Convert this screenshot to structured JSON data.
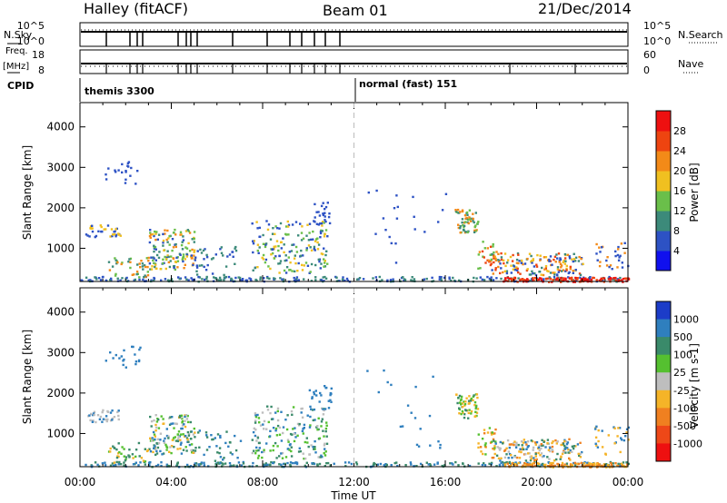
{
  "header": {
    "site": "Halley (fitACF)",
    "beam": "Beam 01",
    "date": "21/Dec/2014"
  },
  "strips": {
    "nsky_label": "N.Sky",
    "nsky_ticks": [
      "10^5",
      "10^0"
    ],
    "nsearch_label": "N.Search",
    "nsearch_ticks": [
      "10^5",
      "10^0"
    ],
    "freq_label": "Freq.",
    "freq_unit": "[MHz]",
    "freq_ticks": [
      "18",
      "8"
    ],
    "nave_label": "Nave",
    "nave_ticks": [
      "60",
      "0"
    ],
    "cpid_label": "CPID",
    "cpid_modes": [
      "themis 3300",
      "normal (fast) 151"
    ]
  },
  "chart_data": [
    {
      "type": "heatmap",
      "title": "",
      "xlabel": "",
      "ylabel": "Slant Range [km]",
      "x_ticks": [
        "00:00",
        "04:00",
        "08:00",
        "12:00",
        "16:00",
        "20:00",
        "00:00"
      ],
      "xlim_hours": [
        0,
        24
      ],
      "ylim_km": [
        180,
        4600
      ],
      "y_ticks": [
        1000,
        2000,
        3000,
        4000
      ],
      "colorbar": {
        "label": "Power [dB]",
        "ticks": [
          "4",
          "8",
          "12",
          "16",
          "20",
          "24",
          "28"
        ],
        "colors": [
          "#1010ee",
          "#2d52c4",
          "#3c8a7a",
          "#6abf4a",
          "#f0c020",
          "#f38a18",
          "#ee4410",
          "#ee1010"
        ]
      },
      "mode_change_hour": 12
    },
    {
      "type": "heatmap",
      "title": "",
      "xlabel": "Time UT",
      "ylabel": "Slant Range [km]",
      "x_ticks": [
        "00:00",
        "04:00",
        "08:00",
        "12:00",
        "16:00",
        "20:00",
        "00:00"
      ],
      "xlim_hours": [
        0,
        24
      ],
      "ylim_km": [
        180,
        4600
      ],
      "y_ticks": [
        1000,
        2000,
        3000,
        4000
      ],
      "colorbar": {
        "label": "Velocity [m s-1]",
        "ticks": [
          "1000",
          "500",
          "100",
          "25",
          "-25",
          "-100",
          "-500",
          "-1000"
        ],
        "colors": [
          "#1c3cc8",
          "#2f7fbe",
          "#3a8a6a",
          "#55c030",
          "#bebebe",
          "#f5b428",
          "#f08020",
          "#ee4818",
          "#ee1010"
        ]
      },
      "mode_change_hour": 12
    }
  ]
}
